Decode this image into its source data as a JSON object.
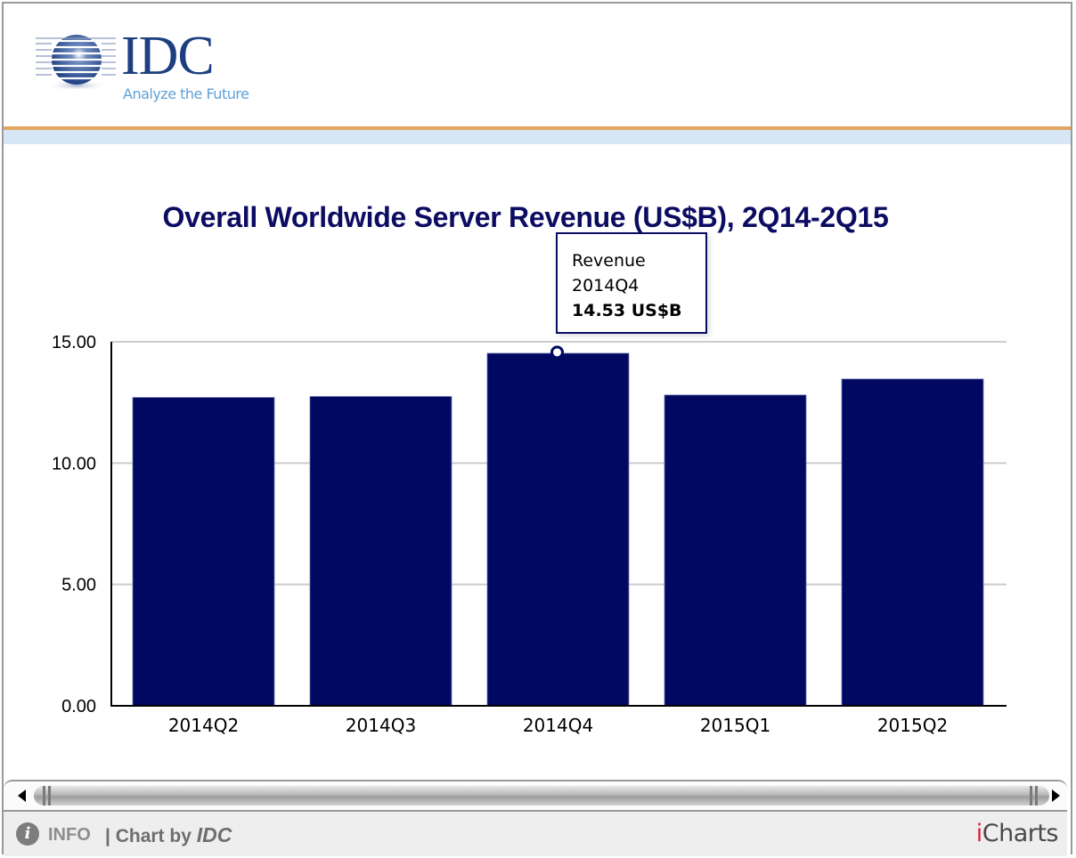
{
  "header": {
    "logo_text": "IDC",
    "logo_tagline": "Analyze the Future"
  },
  "colors": {
    "bar": "#000862",
    "title": "#0c0c62",
    "accent_rule": "#e4a461",
    "band": "#d6e6f4",
    "gridline": "#cccccc"
  },
  "chart_data": {
    "type": "bar",
    "title": "Overall Worldwide Server Revenue (US$B), 2Q14-2Q15",
    "xlabel": "",
    "ylabel": "",
    "categories": [
      "2014Q2",
      "2014Q3",
      "2014Q4",
      "2015Q1",
      "2015Q2"
    ],
    "series": [
      {
        "name": "Revenue",
        "unit": "US$B",
        "values": [
          12.71,
          12.75,
          14.53,
          12.81,
          13.47
        ]
      }
    ],
    "ylim": [
      0,
      15
    ],
    "yticks": [
      0,
      5,
      10,
      15
    ],
    "ytick_labels": [
      "0.00",
      "5.00",
      "10.00",
      "15.00"
    ],
    "grid": true,
    "legend": "none",
    "tooltip": {
      "series": "Revenue",
      "category": "2014Q4",
      "value_label": "14.53 US$B",
      "active_index": 2
    }
  },
  "footer": {
    "info_icon": "info-icon",
    "info_label": "INFO",
    "chart_by_prefix": "| Chart by ",
    "chart_by_brand": "IDC",
    "provider_i": "i",
    "provider_rest": "Charts"
  },
  "scrollbar": {
    "left_arrow": "scroll-left-arrow-icon",
    "right_arrow": "scroll-right-arrow-icon"
  }
}
